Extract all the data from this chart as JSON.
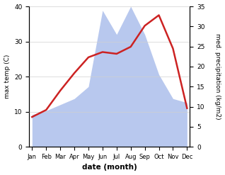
{
  "months": [
    "Jan",
    "Feb",
    "Mar",
    "Apr",
    "May",
    "Jun",
    "Jul",
    "Aug",
    "Sep",
    "Oct",
    "Nov",
    "Dec"
  ],
  "temperature": [
    8.5,
    10.5,
    16.0,
    21.0,
    25.5,
    27.0,
    26.5,
    28.5,
    34.5,
    37.5,
    28.0,
    11.0
  ],
  "precipitation": [
    8.0,
    9.0,
    10.5,
    12.0,
    15.0,
    34.0,
    28.0,
    35.0,
    28.0,
    18.0,
    12.0,
    11.0
  ],
  "temp_color": "#cc2222",
  "precip_color": "#b8c8ee",
  "ylim_temp": [
    0,
    40
  ],
  "ylim_precip": [
    0,
    35
  ],
  "ylabel_left": "max temp (C)",
  "ylabel_right": "med. precipitation (kg/m2)",
  "xlabel": "date (month)",
  "bg_color": "#ffffff",
  "grid_color": "#d0d0d0"
}
